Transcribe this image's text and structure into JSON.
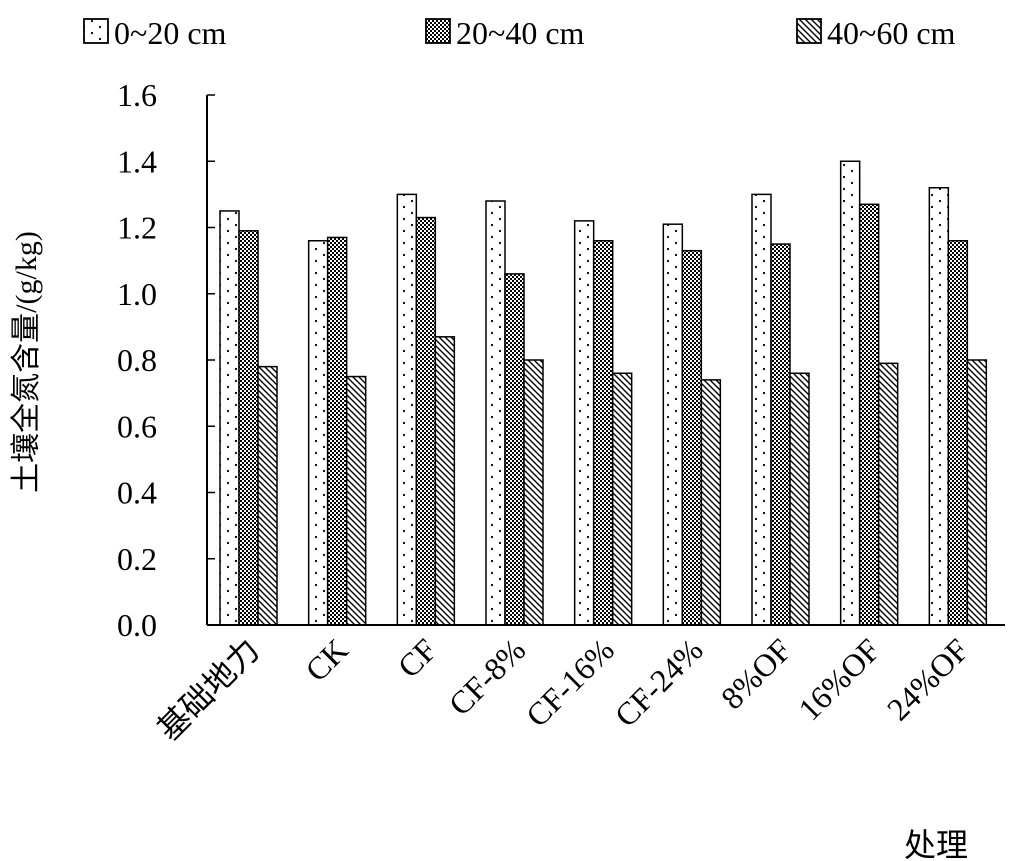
{
  "chart_data": {
    "type": "bar",
    "title": "",
    "xlabel": "处理",
    "ylabel": "土壤全氮含量/(g/kg)",
    "ylim": [
      0,
      1.6
    ],
    "yticks": [
      "0.0",
      "0.2",
      "0.4",
      "0.6",
      "0.8",
      "1.0",
      "1.2",
      "1.4",
      "1.6"
    ],
    "grid": false,
    "legend_position": "top",
    "categories": [
      "基础地力",
      "CK",
      "CF",
      "CF-8%",
      "CF-16%",
      "CF-24%",
      "8%OF",
      "16%OF",
      "24%OF"
    ],
    "series": [
      {
        "name": "0~20 cm",
        "pattern": "dots",
        "values": [
          1.25,
          1.16,
          1.3,
          1.28,
          1.22,
          1.21,
          1.3,
          1.4,
          1.32
        ]
      },
      {
        "name": "20~40 cm",
        "pattern": "checker",
        "values": [
          1.19,
          1.17,
          1.23,
          1.06,
          1.16,
          1.13,
          1.15,
          1.27,
          1.16
        ]
      },
      {
        "name": "40~60 cm",
        "pattern": "diagonal",
        "values": [
          0.78,
          0.75,
          0.87,
          0.8,
          0.76,
          0.74,
          0.76,
          0.79,
          0.8
        ]
      }
    ]
  }
}
